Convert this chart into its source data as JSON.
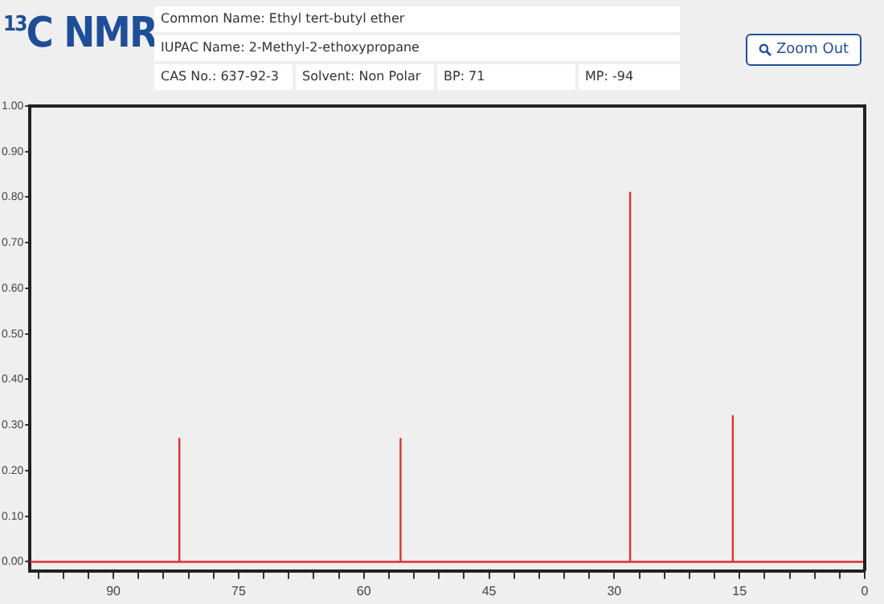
{
  "chart_data": {
    "type": "line",
    "title": "$^{13}$C NMR",
    "annotations": [
      "Common Name: Ethyl tert-butyl ether",
      "IUPAC Name: 2-Methyl-2-ethoxypropane",
      "CAS No.: 637-92-3",
      "Solvent: Non Polar",
      "BP: 71",
      "MP: -94",
      "Zoom Out"
    ],
    "series": [
      {
        "color": "#e03030",
        "x": [
          100,
          82.1,
          82.1,
          82.1,
          55.6,
          55.6,
          55.6,
          28.1,
          28.1,
          28.1,
          15.8,
          15.8,
          15.8,
          0
        ],
        "values": [
          0,
          0,
          0.27,
          0,
          0,
          0.27,
          0,
          0,
          0.81,
          0,
          0,
          0.32,
          0,
          0
        ]
      }
    ],
    "xlim": [
      100,
      0
    ],
    "xticks": [
      {
        "value": 99,
        "label": null
      },
      {
        "value": 96,
        "label": null
      },
      {
        "value": 93,
        "label": null
      },
      90,
      {
        "value": 87,
        "label": null
      },
      {
        "value": 84,
        "label": null
      },
      {
        "value": 81,
        "label": null
      },
      {
        "value": 78,
        "label": null
      },
      75,
      {
        "value": 72,
        "label": null
      },
      {
        "value": 69,
        "label": null
      },
      {
        "value": 66,
        "label": null
      },
      {
        "value": 63,
        "label": null
      },
      60,
      {
        "value": 57,
        "label": null
      },
      {
        "value": 54,
        "label": null
      },
      {
        "value": 51,
        "label": null
      },
      {
        "value": 48,
        "label": null
      },
      45,
      {
        "value": 42,
        "label": null
      },
      {
        "value": 39,
        "label": null
      },
      {
        "value": 36,
        "label": null
      },
      {
        "value": 33,
        "label": null
      },
      30,
      {
        "value": 27,
        "label": null
      },
      {
        "value": 24,
        "label": null
      },
      {
        "value": 21,
        "label": null
      },
      {
        "value": 18,
        "label": null
      },
      15,
      {
        "value": 12,
        "label": null
      },
      {
        "value": 9,
        "label": null
      },
      {
        "value": 6,
        "label": null
      },
      {
        "value": 3,
        "label": null
      },
      0
    ],
    "ylim": [
      -0.02,
      1.0
    ],
    "yticks": [
      {
        "value": 0,
        "label": "0.00"
      },
      {
        "value": 0.1,
        "label": "0.10"
      },
      {
        "value": 0.2,
        "label": "0.20"
      },
      {
        "value": 0.3,
        "label": "0.30"
      },
      {
        "value": 0.4,
        "label": "0.40"
      },
      {
        "value": 0.5,
        "label": "0.50"
      },
      {
        "value": 0.6,
        "label": "0.60"
      },
      {
        "value": 0.7,
        "label": "0.70"
      },
      {
        "value": 0.8,
        "label": "0.80"
      },
      {
        "value": 0.9,
        "label": "0.90"
      },
      {
        "value": 1.0,
        "label": "1.00"
      }
    ],
    "grid": false,
    "legend": false,
    "marker": "none",
    "line_style": "solid"
  }
}
